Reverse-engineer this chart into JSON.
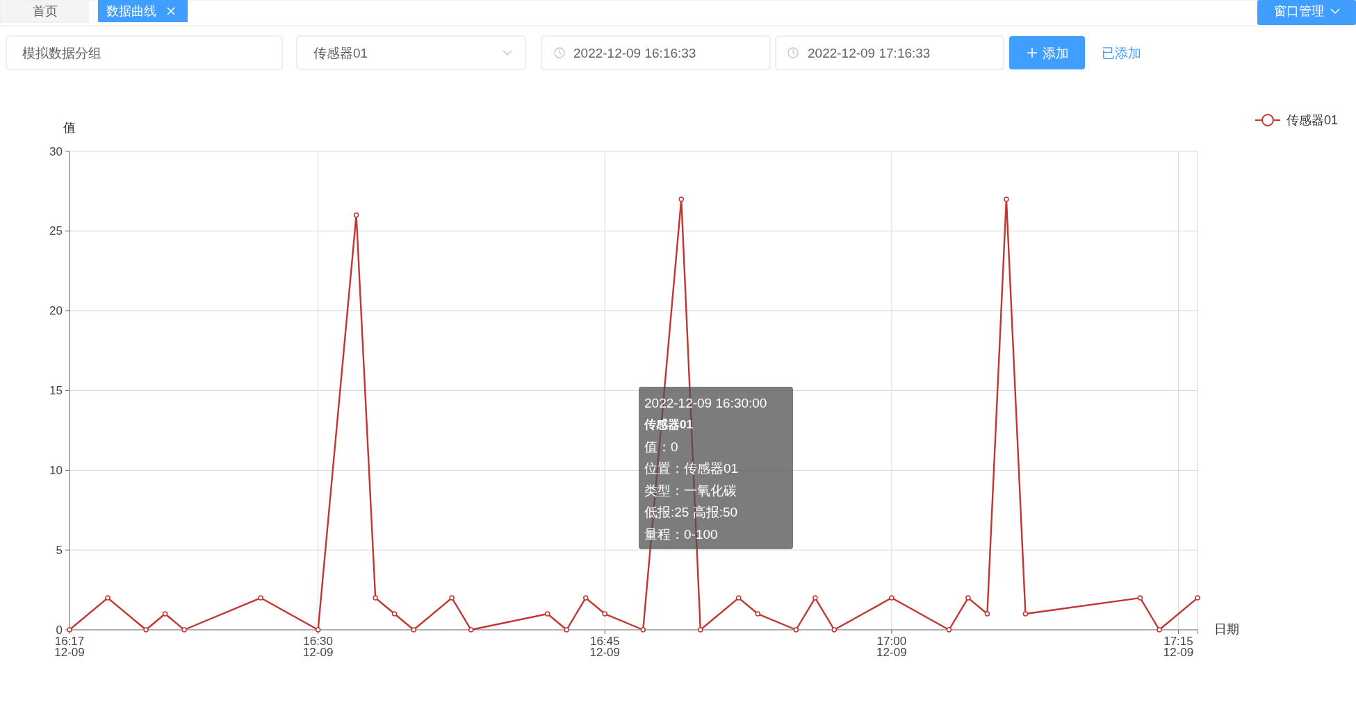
{
  "chart_data": {
    "type": "line",
    "xlabel": "日期",
    "ylabel": "值",
    "x": [
      "2022-12-09T16:17",
      "2022-12-09T16:19",
      "2022-12-09T16:21",
      "2022-12-09T16:22",
      "2022-12-09T16:23",
      "2022-12-09T16:27",
      "2022-12-09T16:30",
      "2022-12-09T16:32",
      "2022-12-09T16:33",
      "2022-12-09T16:34",
      "2022-12-09T16:35",
      "2022-12-09T16:37",
      "2022-12-09T16:38",
      "2022-12-09T16:42",
      "2022-12-09T16:43",
      "2022-12-09T16:44",
      "2022-12-09T16:45",
      "2022-12-09T16:47",
      "2022-12-09T16:49",
      "2022-12-09T16:50",
      "2022-12-09T16:52",
      "2022-12-09T16:53",
      "2022-12-09T16:55",
      "2022-12-09T16:56",
      "2022-12-09T16:57",
      "2022-12-09T17:00",
      "2022-12-09T17:03",
      "2022-12-09T17:04",
      "2022-12-09T17:05",
      "2022-12-09T17:06",
      "2022-12-09T17:07",
      "2022-12-09T17:13",
      "2022-12-09T17:14",
      "2022-12-09T17:16"
    ],
    "series": [
      {
        "name": "传感器01",
        "color": "#c23531",
        "values": [
          0,
          2,
          0,
          1,
          0,
          2,
          0,
          26,
          2,
          1,
          0,
          2,
          0,
          1,
          0,
          2,
          1,
          0,
          27,
          0,
          2,
          1,
          0,
          2,
          0,
          2,
          0,
          2,
          1,
          27,
          1,
          2,
          0,
          2
        ]
      }
    ],
    "xlim": [
      "2022-12-09T16:17",
      "2022-12-09T17:16"
    ],
    "xticks": [
      {
        "value": "2022-12-09T16:17",
        "label": "16:17\n12-09"
      },
      {
        "value": "2022-12-09T16:30",
        "label": "16:30\n12-09"
      },
      {
        "value": "2022-12-09T16:45",
        "label": "16:45\n12-09"
      },
      {
        "value": "2022-12-09T17:00",
        "label": "17:00\n12-09"
      },
      {
        "value": "2022-12-09T17:15",
        "label": "17:15\n12-09"
      },
      {
        "value": "2022-12-09T17:16",
        "label": null
      }
    ],
    "ylim": [
      0,
      30
    ],
    "yticks": [
      0,
      5,
      10,
      15,
      20,
      25,
      30
    ],
    "grid": true,
    "legend": "top right",
    "marker": "circle",
    "line_style": "solid",
    "annotations": [
      "首页",
      "数据曲线",
      "窗口管理",
      "模拟数据分组",
      "传感器01",
      "2022-12-09 16:16:33",
      "2022-12-09 17:16:33",
      "添加",
      "已添加",
      "2022-12-09 16:30:00",
      "传感器01",
      "值：0",
      "位置：传感器01",
      "类型：一氧化碳",
      "低报:25 高报:50",
      "量程：0-100"
    ]
  }
}
